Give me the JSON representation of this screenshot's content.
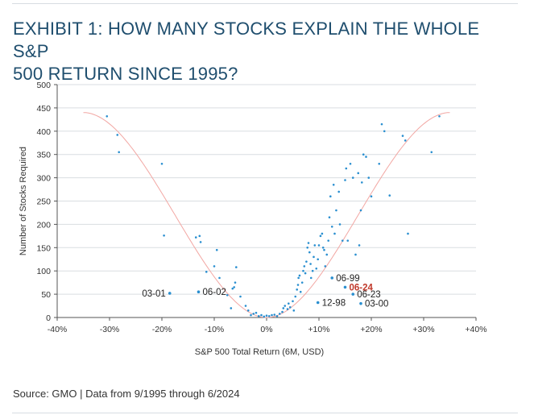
{
  "chart_data": {
    "type": "scatter",
    "title": "EXHIBIT 1: HOW MANY STOCKS EXPLAIN THE WHOLE S&P 500 RETURN SINCE 1995?",
    "title_lines": [
      "EXHIBIT 1: HOW MANY STOCKS EXPLAIN THE WHOLE S&P",
      "500 RETURN SINCE 1995?"
    ],
    "xlabel": "S&P 500 Total Return (6M, USD)",
    "ylabel": "Number of Stocks Required",
    "xlim": [
      -40,
      40
    ],
    "ylim": [
      0,
      500
    ],
    "x_ticks": [
      -40,
      -30,
      -20,
      -10,
      0,
      10,
      20,
      30,
      40
    ],
    "x_tick_labels": [
      "-40%",
      "-30%",
      "-20%",
      "-10%",
      "0%",
      "+10%",
      "+20%",
      "+30%",
      "+40%"
    ],
    "y_ticks": [
      0,
      50,
      100,
      150,
      200,
      250,
      300,
      350,
      400,
      450,
      500
    ],
    "y_tick_labels": [
      "0",
      "50",
      "100",
      "150",
      "200",
      "250",
      "300",
      "350",
      "400",
      "450",
      "500"
    ],
    "grid": true,
    "point_color": "#2a8fd0",
    "fit_color": "#f2a7a3",
    "highlight_color": "#c0392b",
    "points": [
      {
        "x": -30.5,
        "y": 432
      },
      {
        "x": -28.5,
        "y": 392
      },
      {
        "x": -28.2,
        "y": 355
      },
      {
        "x": -20,
        "y": 330
      },
      {
        "x": -19.6,
        "y": 176
      },
      {
        "x": -13.5,
        "y": 172
      },
      {
        "x": -12.8,
        "y": 175
      },
      {
        "x": -12.6,
        "y": 162
      },
      {
        "x": -11.5,
        "y": 98
      },
      {
        "x": -10,
        "y": 110
      },
      {
        "x": -9.5,
        "y": 145
      },
      {
        "x": -9,
        "y": 85
      },
      {
        "x": -7.5,
        "y": 48
      },
      {
        "x": -6.5,
        "y": 62
      },
      {
        "x": -6,
        "y": 75
      },
      {
        "x": -6.2,
        "y": 65
      },
      {
        "x": -5.8,
        "y": 108
      },
      {
        "x": -6.8,
        "y": 20
      },
      {
        "x": -5,
        "y": 45
      },
      {
        "x": -4,
        "y": 25
      },
      {
        "x": -3.5,
        "y": 15
      },
      {
        "x": -3,
        "y": 5
      },
      {
        "x": -2.5,
        "y": 8
      },
      {
        "x": -2,
        "y": 10
      },
      {
        "x": -1.5,
        "y": 3
      },
      {
        "x": -1,
        "y": 5
      },
      {
        "x": -0.5,
        "y": 2
      },
      {
        "x": 0,
        "y": 4
      },
      {
        "x": 0.5,
        "y": 3
      },
      {
        "x": 1,
        "y": 5
      },
      {
        "x": 1.5,
        "y": 6
      },
      {
        "x": 2,
        "y": 3
      },
      {
        "x": 2.5,
        "y": 8
      },
      {
        "x": 3,
        "y": 12
      },
      {
        "x": 3.2,
        "y": 20
      },
      {
        "x": 3.5,
        "y": 25
      },
      {
        "x": 4,
        "y": 18
      },
      {
        "x": 4.2,
        "y": 30
      },
      {
        "x": 4.5,
        "y": 22
      },
      {
        "x": 5,
        "y": 35
      },
      {
        "x": 5.2,
        "y": 15
      },
      {
        "x": 5.5,
        "y": 45
      },
      {
        "x": 5.8,
        "y": 60
      },
      {
        "x": 6,
        "y": 70
      },
      {
        "x": 6.1,
        "y": 85
      },
      {
        "x": 6.3,
        "y": 90
      },
      {
        "x": 6.5,
        "y": 55
      },
      {
        "x": 6.8,
        "y": 75
      },
      {
        "x": 7,
        "y": 100
      },
      {
        "x": 7.2,
        "y": 110
      },
      {
        "x": 7.4,
        "y": 95
      },
      {
        "x": 7.6,
        "y": 120
      },
      {
        "x": 7.8,
        "y": 150
      },
      {
        "x": 8,
        "y": 160
      },
      {
        "x": 8.2,
        "y": 140
      },
      {
        "x": 8.4,
        "y": 115
      },
      {
        "x": 8.5,
        "y": 85
      },
      {
        "x": 8.8,
        "y": 100
      },
      {
        "x": 9,
        "y": 130
      },
      {
        "x": 9.2,
        "y": 155
      },
      {
        "x": 9.5,
        "y": 105
      },
      {
        "x": 9.8,
        "y": 125
      },
      {
        "x": 10,
        "y": 155
      },
      {
        "x": 10.3,
        "y": 175
      },
      {
        "x": 10.6,
        "y": 180
      },
      {
        "x": 10.8,
        "y": 150
      },
      {
        "x": 11,
        "y": 145
      },
      {
        "x": 11.2,
        "y": 110
      },
      {
        "x": 11.5,
        "y": 135
      },
      {
        "x": 11.8,
        "y": 165
      },
      {
        "x": 12,
        "y": 215
      },
      {
        "x": 12.2,
        "y": 260
      },
      {
        "x": 12.5,
        "y": 195
      },
      {
        "x": 12.8,
        "y": 285
      },
      {
        "x": 13,
        "y": 180
      },
      {
        "x": 13.3,
        "y": 230
      },
      {
        "x": 13.8,
        "y": 270
      },
      {
        "x": 14,
        "y": 200
      },
      {
        "x": 14.5,
        "y": 165
      },
      {
        "x": 15,
        "y": 295
      },
      {
        "x": 15.2,
        "y": 320
      },
      {
        "x": 15.5,
        "y": 165
      },
      {
        "x": 16,
        "y": 330
      },
      {
        "x": 16.5,
        "y": 300
      },
      {
        "x": 17,
        "y": 135
      },
      {
        "x": 17.5,
        "y": 310
      },
      {
        "x": 17.7,
        "y": 155
      },
      {
        "x": 18,
        "y": 230
      },
      {
        "x": 18.2,
        "y": 290
      },
      {
        "x": 18.5,
        "y": 350
      },
      {
        "x": 19,
        "y": 345
      },
      {
        "x": 19.5,
        "y": 300
      },
      {
        "x": 20,
        "y": 260
      },
      {
        "x": 21.5,
        "y": 330
      },
      {
        "x": 22,
        "y": 415
      },
      {
        "x": 22.5,
        "y": 400
      },
      {
        "x": 23.5,
        "y": 262
      },
      {
        "x": 26,
        "y": 390
      },
      {
        "x": 26.5,
        "y": 380
      },
      {
        "x": 27,
        "y": 180
      },
      {
        "x": 31.5,
        "y": 355
      },
      {
        "x": 33,
        "y": 432
      }
    ],
    "labeled_points": [
      {
        "label": "03-01",
        "x": -18.5,
        "y": 52,
        "highlight": false
      },
      {
        "label": "06-02",
        "x": -13,
        "y": 55,
        "highlight": false
      },
      {
        "label": "06-99",
        "x": 12.5,
        "y": 85,
        "highlight": false
      },
      {
        "label": "06-24",
        "x": 15,
        "y": 65,
        "highlight": true
      },
      {
        "label": "06-23",
        "x": 16.5,
        "y": 50,
        "highlight": false
      },
      {
        "label": "12-98",
        "x": 9.8,
        "y": 32,
        "highlight": false
      },
      {
        "label": "03-00",
        "x": 18,
        "y": 30,
        "highlight": false
      }
    ],
    "fit_curve": {
      "type": "polynomial",
      "x_range": [
        -35,
        35
      ]
    }
  },
  "footer": {
    "source": "Source: GMO | Data from 9/1995 through 6/2024"
  }
}
